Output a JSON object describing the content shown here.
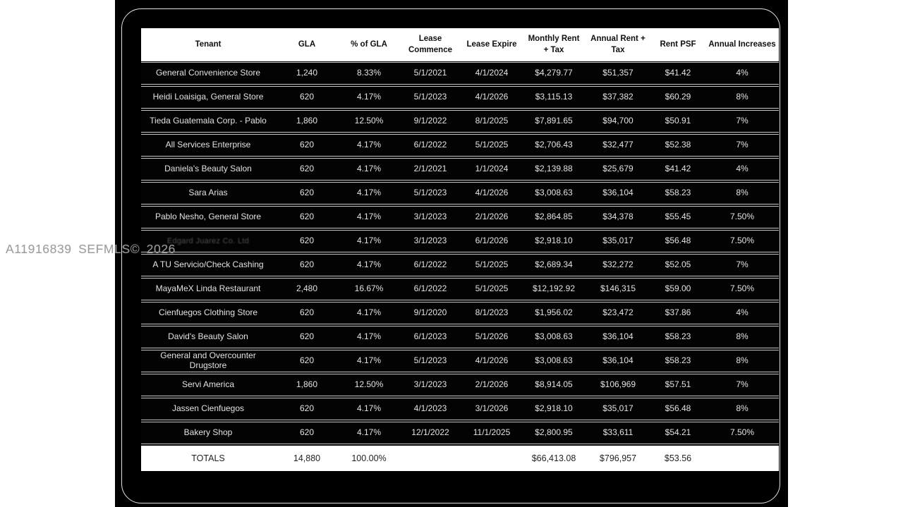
{
  "watermark": {
    "text": "A11916839 SEFMLS© 2026"
  },
  "colors": {
    "page_background": "#ffffff",
    "panel_background": "#000000",
    "panel_border_line": "#f5f5f5",
    "header_background": "#ffffff",
    "row_background": "#030303",
    "row_text": "#e3e3e3",
    "row_separator": "#c9c9c9",
    "totals_background": "#ffffff",
    "totals_text": "#222222",
    "watermark_text": "#9c9c9c"
  },
  "table": {
    "columns": [
      {
        "key": "tenant",
        "label": "Tenant"
      },
      {
        "key": "gla",
        "label": "GLA"
      },
      {
        "key": "pct",
        "label": "% of GLA"
      },
      {
        "key": "commence",
        "label": "Lease Commence"
      },
      {
        "key": "expire",
        "label": "Lease Expire"
      },
      {
        "key": "monthly",
        "label": "Monthly Rent + Tax"
      },
      {
        "key": "annual",
        "label": "Annual Rent + Tax"
      },
      {
        "key": "psf",
        "label": "Rent PSF"
      },
      {
        "key": "increase",
        "label": "Annual Increases"
      }
    ],
    "rows": [
      {
        "tenant": "General Convenience Store",
        "gla": "1,240",
        "pct": "8.33%",
        "commence": "5/1/2021",
        "expire": "4/1/2024",
        "monthly": "$4,279.77",
        "annual": "$51,357",
        "psf": "$41.42",
        "increase": "4%"
      },
      {
        "tenant": "Heidi Loaisiga, General Store",
        "gla": "620",
        "pct": "4.17%",
        "commence": "5/1/2023",
        "expire": "4/1/2026",
        "monthly": "$3,115.13",
        "annual": "$37,382",
        "psf": "$60.29",
        "increase": "8%"
      },
      {
        "tenant": "Tieda Guatemala Corp. - Pablo",
        "gla": "1,860",
        "pct": "12.50%",
        "commence": "9/1/2022",
        "expire": "8/1/2025",
        "monthly": "$7,891.65",
        "annual": "$94,700",
        "psf": "$50.91",
        "increase": "7%"
      },
      {
        "tenant": "All Services Enterprise",
        "gla": "620",
        "pct": "4.17%",
        "commence": "6/1/2022",
        "expire": "5/1/2025",
        "monthly": "$2,706.43",
        "annual": "$32,477",
        "psf": "$52.38",
        "increase": "7%"
      },
      {
        "tenant": "Daniela's Beauty Salon",
        "gla": "620",
        "pct": "4.17%",
        "commence": "2/1/2021",
        "expire": "1/1/2024",
        "monthly": "$2,139.88",
        "annual": "$25,679",
        "psf": "$41.42",
        "increase": "4%"
      },
      {
        "tenant": "Sara Arias",
        "gla": "620",
        "pct": "4.17%",
        "commence": "5/1/2023",
        "expire": "4/1/2026",
        "monthly": "$3,008.63",
        "annual": "$36,104",
        "psf": "$58.23",
        "increase": "8%"
      },
      {
        "tenant": "Pablo Nesho, General Store",
        "gla": "620",
        "pct": "4.17%",
        "commence": "3/1/2023",
        "expire": "2/1/2026",
        "monthly": "$2,864.85",
        "annual": "$34,378",
        "psf": "$55.45",
        "increase": "7.50%"
      },
      {
        "tenant": "Edgard Juarez Co. Ltd",
        "tenant_obscured": true,
        "gla": "620",
        "pct": "4.17%",
        "commence": "3/1/2023",
        "expire": "6/1/2026",
        "monthly": "$2,918.10",
        "annual": "$35,017",
        "psf": "$56.48",
        "increase": "7.50%"
      },
      {
        "tenant": "A TU Servicio/Check Cashing",
        "gla": "620",
        "pct": "4.17%",
        "commence": "6/1/2022",
        "expire": "5/1/2025",
        "monthly": "$2,689.34",
        "annual": "$32,272",
        "psf": "$52.05",
        "increase": "7%"
      },
      {
        "tenant": "MayaMeX Linda Restaurant",
        "gla": "2,480",
        "pct": "16.67%",
        "commence": "6/1/2022",
        "expire": "5/1/2025",
        "monthly": "$12,192.92",
        "annual": "$146,315",
        "psf": "$59.00",
        "increase": "7.50%"
      },
      {
        "tenant": "Cienfuegos Clothing Store",
        "gla": "620",
        "pct": "4.17%",
        "commence": "9/1/2020",
        "expire": "8/1/2023",
        "monthly": "$1,956.02",
        "annual": "$23,472",
        "psf": "$37.86",
        "increase": "4%"
      },
      {
        "tenant": "David's Beauty Salon",
        "gla": "620",
        "pct": "4.17%",
        "commence": "6/1/2023",
        "expire": "5/1/2026",
        "monthly": "$3,008.63",
        "annual": "$36,104",
        "psf": "$58.23",
        "increase": "8%"
      },
      {
        "tenant": "General and Overcounter Drugstore",
        "gla": "620",
        "pct": "4.17%",
        "commence": "5/1/2023",
        "expire": "4/1/2026",
        "monthly": "$3,008.63",
        "annual": "$36,104",
        "psf": "$58.23",
        "increase": "8%"
      },
      {
        "tenant": "Servi America",
        "gla": "1,860",
        "pct": "12.50%",
        "commence": "3/1/2023",
        "expire": "2/1/2026",
        "monthly": "$8,914.05",
        "annual": "$106,969",
        "psf": "$57.51",
        "increase": "7%"
      },
      {
        "tenant": "Jassen Cienfuegos",
        "gla": "620",
        "pct": "4.17%",
        "commence": "4/1/2023",
        "expire": "3/1/2026",
        "monthly": "$2,918.10",
        "annual": "$35,017",
        "psf": "$56.48",
        "increase": "8%"
      },
      {
        "tenant": "Bakery Shop",
        "gla": "620",
        "pct": "4.17%",
        "commence": "12/1/2022",
        "expire": "11/1/2025",
        "monthly": "$2,800.95",
        "annual": "$33,611",
        "psf": "$54.21",
        "increase": "7.50%"
      }
    ],
    "totals": {
      "label": "TOTALS",
      "gla": "14,880",
      "pct": "100.00%",
      "commence": "",
      "expire": "",
      "monthly": "$66,413.08",
      "annual": "$796,957",
      "psf": "$53.56",
      "increase": ""
    }
  }
}
